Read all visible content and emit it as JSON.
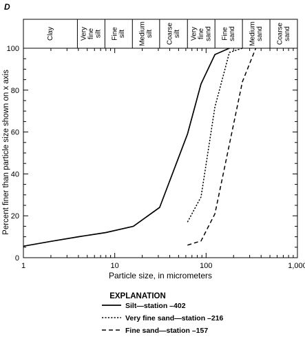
{
  "chart_data": {
    "type": "line",
    "panel_label": "D",
    "xlabel": "Particle size, in micrometers",
    "ylabel": "Percent finer than particle size shown on x axis",
    "x_scale": "log",
    "xlim": [
      1,
      1000
    ],
    "ylim": [
      0,
      100
    ],
    "x_ticks": [
      {
        "value": 1,
        "label": "1"
      },
      {
        "value": 10,
        "label": "10"
      },
      {
        "value": 100,
        "label": "100"
      },
      {
        "value": 1000,
        "label": "1,000"
      }
    ],
    "y_ticks": [
      0,
      20,
      40,
      60,
      80,
      100
    ],
    "size_classes": [
      {
        "lines": [
          "Clay"
        ],
        "from": 1,
        "to": 3.9
      },
      {
        "lines": [
          "Very",
          "fine",
          "silt"
        ],
        "from": 3.9,
        "to": 7.8
      },
      {
        "lines": [
          "Fine",
          "silt"
        ],
        "from": 7.8,
        "to": 15.6
      },
      {
        "lines": [
          "Medium",
          "silt"
        ],
        "from": 15.6,
        "to": 31
      },
      {
        "lines": [
          "Coarse",
          "silt"
        ],
        "from": 31,
        "to": 62.5
      },
      {
        "lines": [
          "Very",
          "fine",
          "sand"
        ],
        "from": 62.5,
        "to": 125
      },
      {
        "lines": [
          "Fine",
          "sand"
        ],
        "from": 125,
        "to": 250
      },
      {
        "lines": [
          "Medium",
          "sand"
        ],
        "from": 250,
        "to": 500
      },
      {
        "lines": [
          "Coarse",
          "sand"
        ],
        "from": 500,
        "to": 1000
      }
    ],
    "legend_title": "EXPLANATION",
    "series": [
      {
        "name": "Silt—station –402",
        "style": "solid",
        "x": [
          1,
          2,
          4,
          8,
          16,
          31,
          62.5,
          88,
          125,
          180
        ],
        "y": [
          5.5,
          7.8,
          10,
          12,
          15,
          24,
          59,
          83,
          97,
          100
        ]
      },
      {
        "name": "Very fine sand—station –216",
        "style": "dotted",
        "x": [
          62.5,
          88,
          125,
          180,
          250
        ],
        "y": [
          17,
          29,
          72,
          98,
          100
        ]
      },
      {
        "name": "Fine sand—station –157",
        "style": "dashed",
        "x": [
          62.5,
          88,
          125,
          250,
          350
        ],
        "y": [
          6,
          8,
          21,
          84,
          100
        ]
      }
    ]
  }
}
